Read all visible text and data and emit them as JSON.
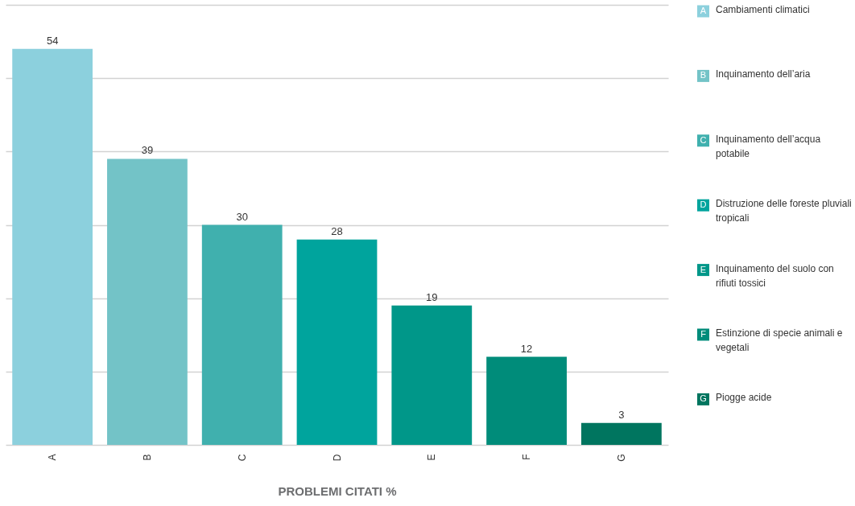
{
  "chart_data": {
    "type": "bar",
    "categories": [
      "A",
      "B",
      "C",
      "D",
      "E",
      "F",
      "G"
    ],
    "series": [
      {
        "name": "Cambiamenti climatici",
        "color": "#8cd0dd",
        "values": [
          54,
          null,
          null,
          null,
          null,
          null,
          null
        ]
      },
      {
        "name": "Inquinamento dell’aria",
        "color": "#73c3c7",
        "values": [
          null,
          39,
          null,
          null,
          null,
          null,
          null
        ]
      },
      {
        "name": "Inquinamento dell’acqua potabile",
        "color": "#40b0ae",
        "values": [
          null,
          null,
          30,
          null,
          null,
          null,
          null
        ]
      },
      {
        "name": "Distruzione delle foreste pluviali tropicali",
        "color": "#00a49d",
        "values": [
          null,
          null,
          null,
          28,
          null,
          null,
          null
        ]
      },
      {
        "name": "Inquinamento del suolo con rifiuti tossici",
        "color": "#009789",
        "values": [
          null,
          null,
          null,
          null,
          19,
          null,
          null
        ]
      },
      {
        "name": "Estinzione di specie animali e vegetali",
        "color": "#008c7a",
        "values": [
          null,
          null,
          null,
          null,
          null,
          12,
          null
        ]
      },
      {
        "name": "Piogge acide",
        "color": "#00755f",
        "values": [
          null,
          null,
          null,
          null,
          null,
          null,
          3
        ]
      }
    ],
    "stacked": true,
    "xlabel": "PROBLEMI CITATI %",
    "ylim": [
      0,
      60
    ],
    "yticks": [
      0,
      10,
      20,
      30,
      40,
      50,
      60
    ],
    "tick_labels": "x",
    "grid": "y",
    "legend": "right",
    "data_labels": true
  }
}
